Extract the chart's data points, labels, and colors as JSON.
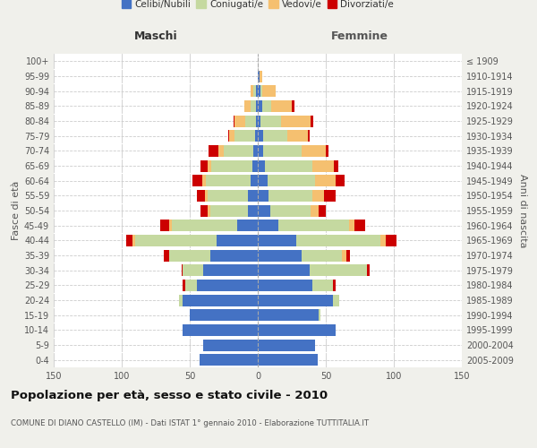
{
  "age_groups": [
    "0-4",
    "5-9",
    "10-14",
    "15-19",
    "20-24",
    "25-29",
    "30-34",
    "35-39",
    "40-44",
    "45-49",
    "50-54",
    "55-59",
    "60-64",
    "65-69",
    "70-74",
    "75-79",
    "80-84",
    "85-89",
    "90-94",
    "95-99",
    "100+"
  ],
  "birth_years": [
    "2005-2009",
    "2000-2004",
    "1995-1999",
    "1990-1994",
    "1985-1989",
    "1980-1984",
    "1975-1979",
    "1970-1974",
    "1965-1969",
    "1960-1964",
    "1955-1959",
    "1950-1954",
    "1945-1949",
    "1940-1944",
    "1935-1939",
    "1930-1934",
    "1925-1929",
    "1920-1924",
    "1915-1919",
    "1910-1914",
    "≤ 1909"
  ],
  "maschi_celibi": [
    43,
    40,
    55,
    50,
    55,
    45,
    40,
    35,
    30,
    15,
    7,
    7,
    5,
    4,
    3,
    2,
    1,
    1,
    1,
    0,
    0
  ],
  "maschi_coniugati": [
    0,
    0,
    0,
    0,
    3,
    8,
    15,
    30,
    60,
    48,
    28,
    30,
    33,
    30,
    22,
    15,
    8,
    4,
    2,
    0,
    0
  ],
  "maschi_vedovi": [
    0,
    0,
    0,
    0,
    0,
    0,
    0,
    0,
    2,
    2,
    2,
    2,
    3,
    3,
    4,
    4,
    8,
    5,
    2,
    0,
    0
  ],
  "maschi_divorziati": [
    0,
    0,
    0,
    0,
    0,
    2,
    1,
    4,
    5,
    7,
    5,
    6,
    7,
    5,
    7,
    1,
    1,
    0,
    0,
    0,
    0
  ],
  "femmine_celibi": [
    44,
    42,
    57,
    45,
    55,
    40,
    38,
    32,
    28,
    15,
    9,
    8,
    7,
    5,
    4,
    4,
    2,
    3,
    2,
    1,
    0
  ],
  "femmine_coniugati": [
    0,
    0,
    0,
    1,
    5,
    15,
    42,
    30,
    62,
    52,
    30,
    32,
    35,
    35,
    28,
    18,
    15,
    7,
    1,
    0,
    0
  ],
  "femmine_vedovi": [
    0,
    0,
    0,
    0,
    0,
    0,
    0,
    3,
    4,
    4,
    6,
    9,
    15,
    16,
    18,
    15,
    22,
    15,
    10,
    2,
    0
  ],
  "femmine_divorziati": [
    0,
    0,
    0,
    0,
    0,
    2,
    2,
    3,
    8,
    8,
    5,
    8,
    7,
    3,
    2,
    1,
    2,
    2,
    0,
    0,
    0
  ],
  "colors": {
    "celibi": "#4472c4",
    "coniugati": "#c5d9a0",
    "vedovi": "#f5c070",
    "divorziati": "#cc0000"
  },
  "legend_labels": [
    "Celibi/Nubili",
    "Coniugati/e",
    "Vedovi/e",
    "Divorziati/e"
  ],
  "title": "Popolazione per età, sesso e stato civile - 2010",
  "subtitle": "COMUNE DI DIANO CASTELLO (IM) - Dati ISTAT 1° gennaio 2010 - Elaborazione TUTTITALIA.IT",
  "ylabel_left": "Fasce di età",
  "ylabel_right": "Anni di nascita",
  "xlabel_left": "Maschi",
  "xlabel_right": "Femmine",
  "xlim": 150,
  "background_color": "#f0f0eb",
  "bar_background": "#ffffff"
}
